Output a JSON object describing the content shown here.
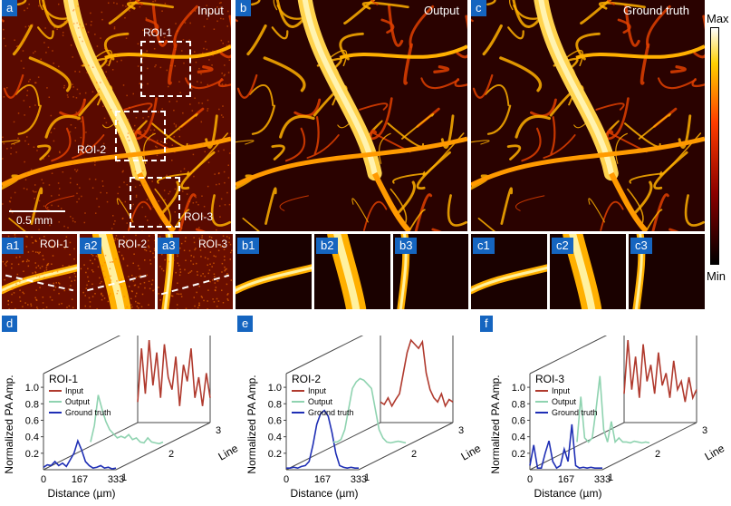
{
  "panels": {
    "a": {
      "badge": "a",
      "title": "Input",
      "roi1": "ROI-1",
      "roi2": "ROI-2",
      "roi3": "ROI-3",
      "scale": "0.5 mm"
    },
    "b": {
      "badge": "b",
      "title": "Output"
    },
    "c": {
      "badge": "c",
      "title": "Ground truth"
    },
    "colorbar": {
      "max": "Max",
      "min": "Min"
    },
    "a1": {
      "badge": "a1",
      "title": "ROI-1"
    },
    "a2": {
      "badge": "a2",
      "title": "ROI-2"
    },
    "a3": {
      "badge": "a3",
      "title": "ROI-3"
    },
    "b1": {
      "badge": "b1"
    },
    "b2": {
      "badge": "b2"
    },
    "b3": {
      "badge": "b3"
    },
    "c1": {
      "badge": "c1"
    },
    "c2": {
      "badge": "c2"
    },
    "c3": {
      "badge": "c3"
    }
  },
  "plots": {
    "d": {
      "badge": "d"
    },
    "e": {
      "badge": "e"
    },
    "f": {
      "badge": "f"
    }
  },
  "colors": {
    "input": "#b03a2e",
    "output": "#8fd3b0",
    "ground_truth": "#1f2fb5",
    "badge": "#1565c0"
  },
  "chart_data": [
    {
      "type": "line",
      "title": "ROI-1",
      "xlabel": "Distance (µm)",
      "ylabel": "Normalized PA Amp.",
      "zlabel": "Line",
      "xticks": [
        "0",
        "167",
        "333"
      ],
      "zticks": [
        "1",
        "2",
        "3"
      ],
      "yticks": [
        "0.2",
        "0.4",
        "0.6",
        "0.8",
        "1.0"
      ],
      "ylim": [
        0,
        1.1
      ],
      "legend": [
        "Input",
        "Output",
        "Ground truth"
      ],
      "series": [
        {
          "name": "Ground truth",
          "line": 1,
          "values": [
            0.03,
            0.06,
            0.05,
            0.1,
            0.05,
            0.08,
            0.04,
            0.12,
            0.2,
            0.35,
            0.24,
            0.1,
            0.05,
            0.02,
            0.03,
            0.05,
            0.02,
            0.03,
            0.01,
            0.02
          ]
        },
        {
          "name": "Output",
          "line": 2,
          "values": [
            0.05,
            0.25,
            0.62,
            0.45,
            0.3,
            0.2,
            0.15,
            0.1,
            0.12,
            0.1,
            0.14,
            0.08,
            0.1,
            0.05,
            0.04,
            0.1,
            0.05,
            0.04,
            0.03,
            0.05
          ]
        },
        {
          "name": "Input",
          "line": 3,
          "values": [
            0.25,
            0.9,
            0.35,
            1.0,
            0.45,
            0.85,
            0.3,
            0.95,
            0.55,
            0.4,
            0.8,
            0.2,
            0.7,
            0.5,
            0.9,
            0.3,
            0.55,
            0.2,
            0.6,
            0.3
          ]
        }
      ]
    },
    {
      "type": "line",
      "title": "ROI-2",
      "xlabel": "Distance (µm)",
      "ylabel": "Normalized PA Amp.",
      "zlabel": "Line",
      "xticks": [
        "0",
        "167",
        "333"
      ],
      "zticks": [
        "1",
        "2",
        "3"
      ],
      "yticks": [
        "0.2",
        "0.4",
        "0.6",
        "0.8",
        "1.0"
      ],
      "ylim": [
        0,
        1.1
      ],
      "legend": [
        "Input",
        "Output",
        "Ground truth"
      ],
      "series": [
        {
          "name": "Ground truth",
          "line": 1,
          "values": [
            0.02,
            0.02,
            0.03,
            0.02,
            0.04,
            0.05,
            0.1,
            0.3,
            0.55,
            0.68,
            0.72,
            0.65,
            0.45,
            0.2,
            0.05,
            0.03,
            0.02,
            0.03,
            0.02,
            0.02
          ]
        },
        {
          "name": "Output",
          "line": 2,
          "values": [
            0.05,
            0.05,
            0.08,
            0.2,
            0.45,
            0.7,
            0.78,
            0.82,
            0.8,
            0.75,
            0.7,
            0.45,
            0.2,
            0.1,
            0.05,
            0.04,
            0.05,
            0.06,
            0.05,
            0.04
          ]
        },
        {
          "name": "Input",
          "line": 3,
          "values": [
            0.25,
            0.22,
            0.3,
            0.2,
            0.28,
            0.35,
            0.6,
            0.85,
            1.0,
            0.95,
            0.9,
            0.98,
            0.6,
            0.4,
            0.3,
            0.25,
            0.35,
            0.2,
            0.28,
            0.25
          ]
        }
      ]
    },
    {
      "type": "line",
      "title": "ROI-3",
      "xlabel": "Distance (µm)",
      "ylabel": "Normalized PA Amp.",
      "zlabel": "Line",
      "xticks": [
        "0",
        "167",
        "333"
      ],
      "zticks": [
        "1",
        "2",
        "3"
      ],
      "yticks": [
        "0.2",
        "0.4",
        "0.6",
        "0.8",
        "1.0"
      ],
      "ylim": [
        0,
        1.1
      ],
      "legend": [
        "Input",
        "Output",
        "Ground truth"
      ],
      "series": [
        {
          "name": "Ground truth",
          "line": 1,
          "values": [
            0.05,
            0.3,
            0.02,
            0.02,
            0.2,
            0.35,
            0.1,
            0.02,
            0.05,
            0.25,
            0.1,
            0.55,
            0.05,
            0.02,
            0.03,
            0.02,
            0.03,
            0.02,
            0.02,
            0.02
          ]
        },
        {
          "name": "Output",
          "line": 2,
          "values": [
            0.05,
            0.6,
            0.1,
            0.05,
            0.1,
            0.45,
            0.85,
            0.2,
            0.05,
            0.3,
            0.05,
            0.1,
            0.05,
            0.05,
            0.04,
            0.06,
            0.05,
            0.04,
            0.05,
            0.04
          ]
        },
        {
          "name": "Input",
          "line": 3,
          "values": [
            0.35,
            1.0,
            0.4,
            0.8,
            0.3,
            0.95,
            0.5,
            0.7,
            0.35,
            0.85,
            0.45,
            0.6,
            0.3,
            0.75,
            0.4,
            0.5,
            0.25,
            0.55,
            0.3,
            0.4
          ]
        }
      ]
    }
  ]
}
